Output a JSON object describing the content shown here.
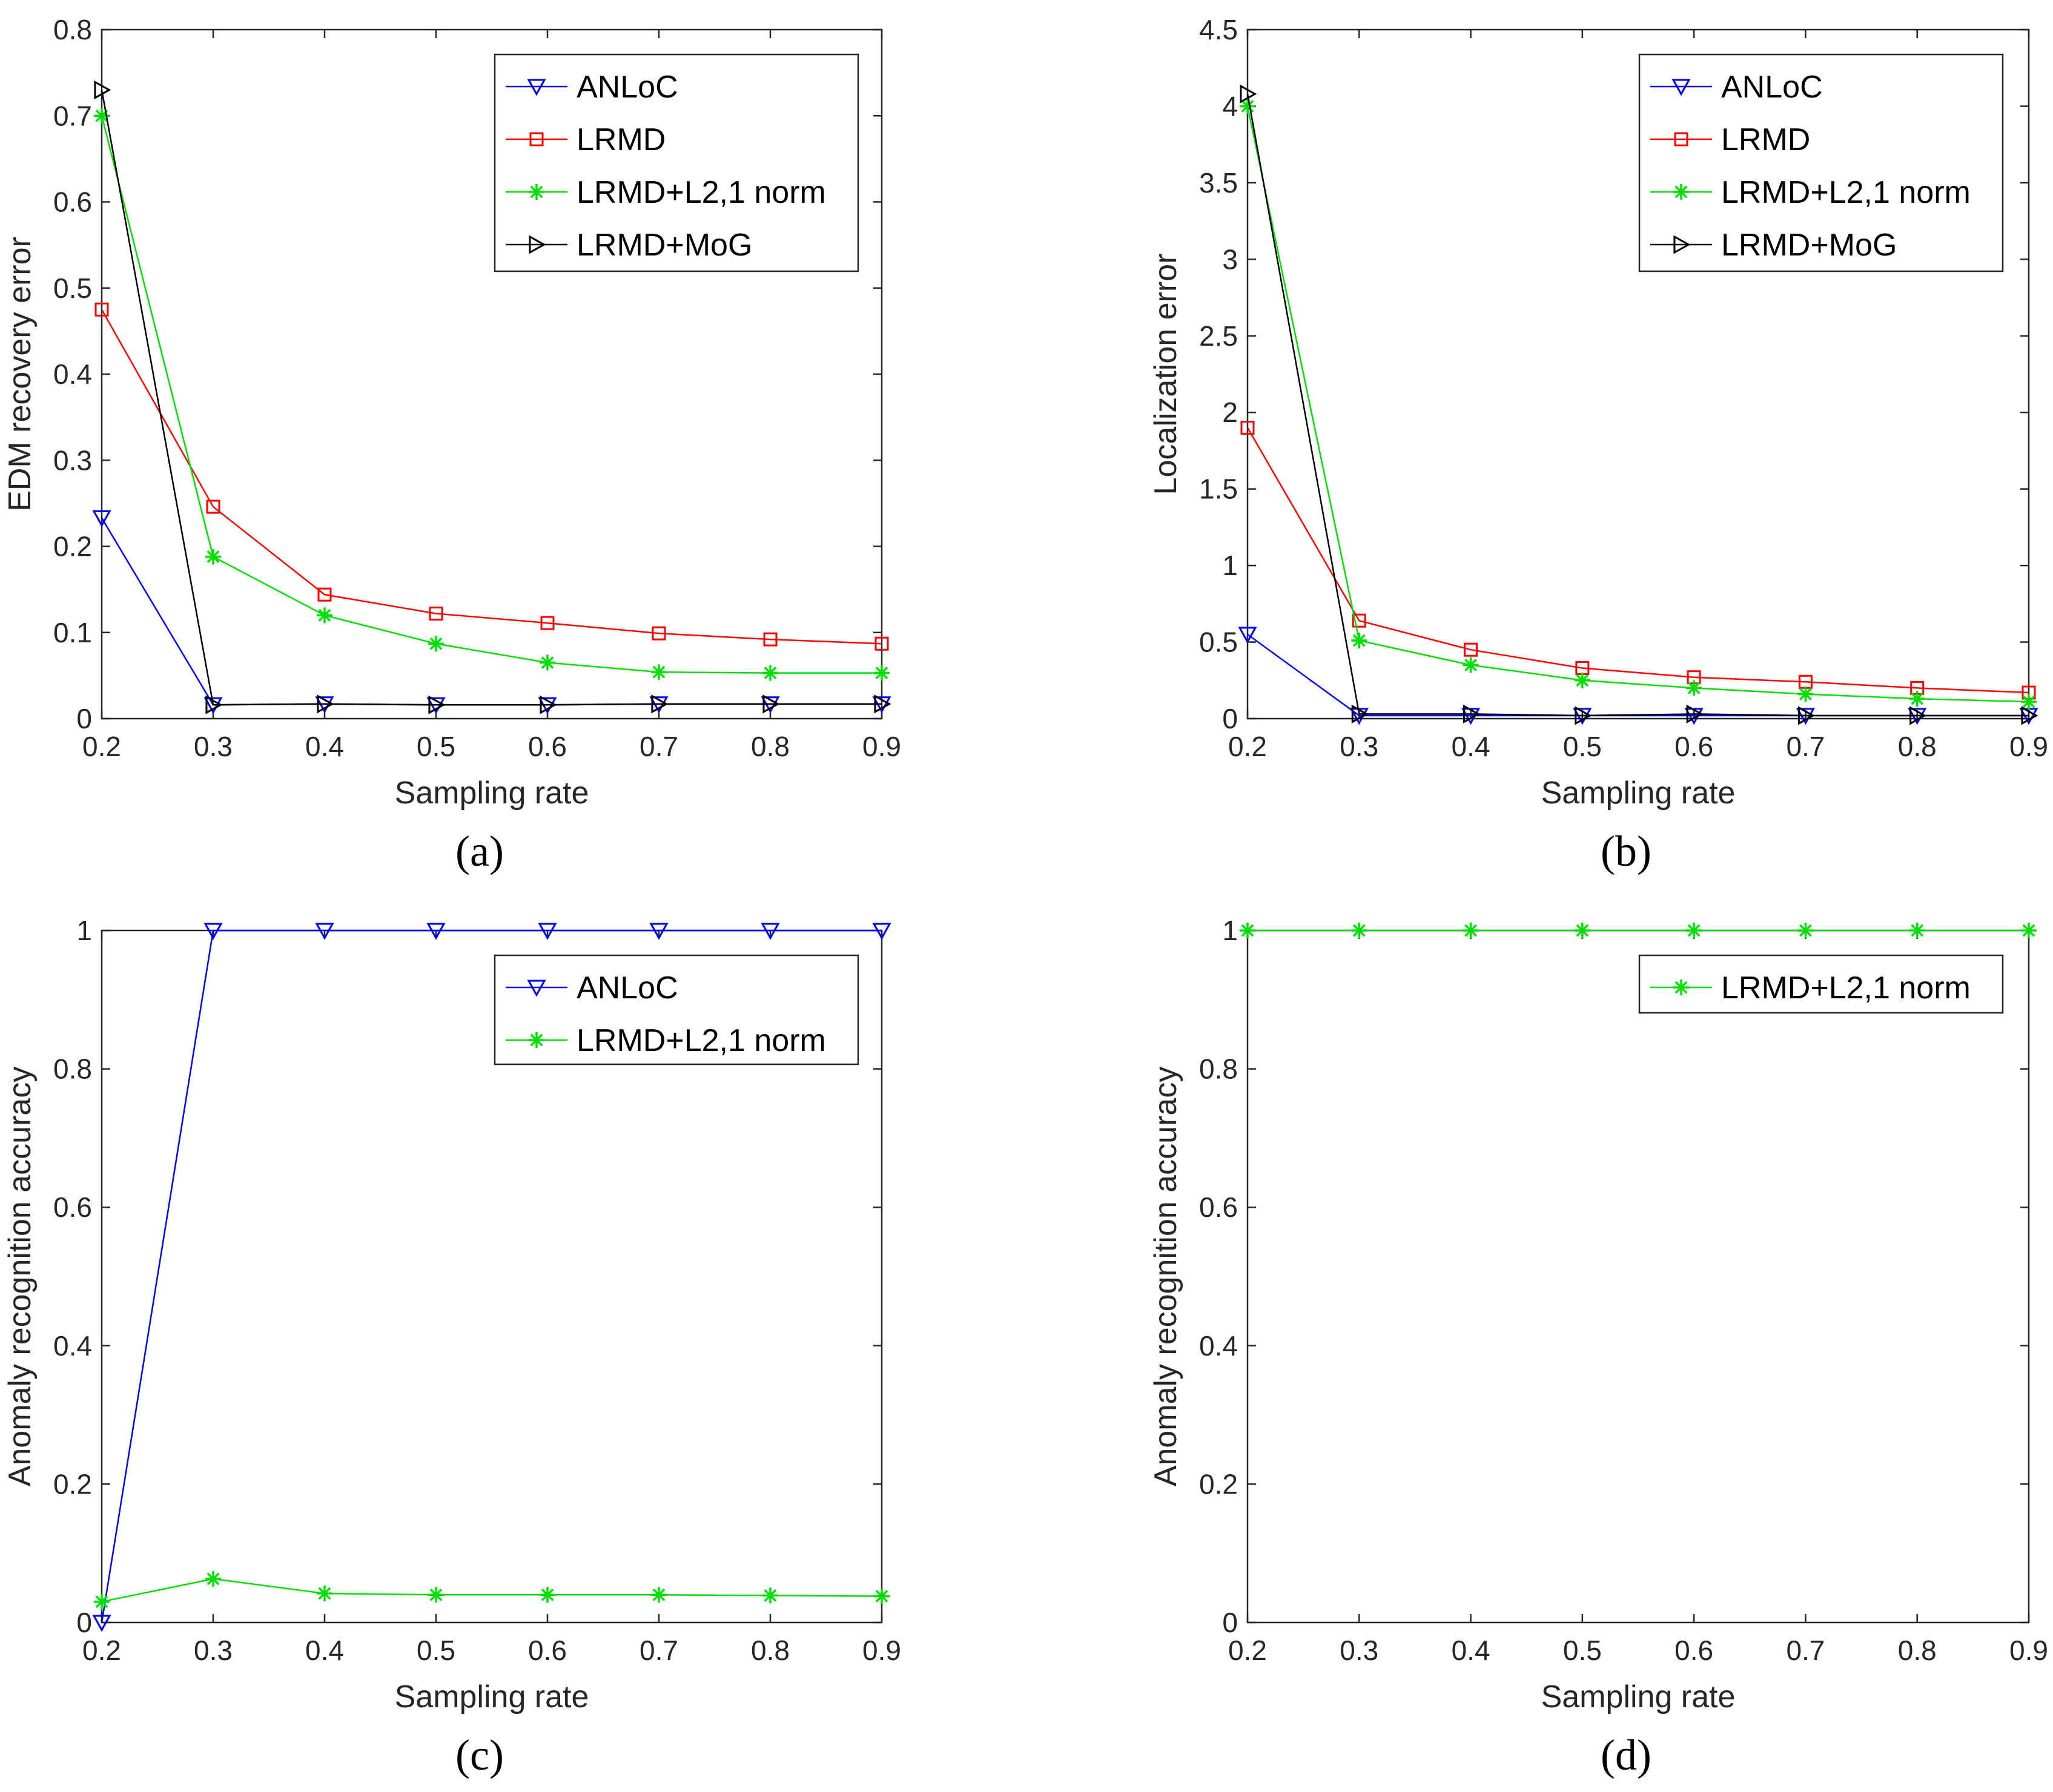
{
  "colors": {
    "ANLoC": "#0000ff",
    "LRMD": "#ff0000",
    "LRMD+L2,1 norm": "#00e000",
    "LRMD+MoG": "#000000"
  },
  "chart_data": [
    {
      "type": "line",
      "caption": "(a)",
      "xlabel": "Sampling rate",
      "ylabel": "EDM recovery error",
      "x": [
        0.2,
        0.3,
        0.4,
        0.5,
        0.6,
        0.7,
        0.8,
        0.9
      ],
      "xlim": [
        0.2,
        0.9
      ],
      "ylim": [
        0,
        0.8
      ],
      "xticks": [
        "0.2",
        "0.3",
        "0.4",
        "0.5",
        "0.6",
        "0.7",
        "0.8",
        "0.9"
      ],
      "yticks": [
        "0",
        "0.1",
        "0.2",
        "0.3",
        "0.4",
        "0.5",
        "0.6",
        "0.7",
        "0.8"
      ],
      "legend_position": "top-right",
      "series": [
        {
          "name": "ANLoC",
          "marker": "triangle-down",
          "values": [
            0.233,
            0.016,
            0.017,
            0.016,
            0.016,
            0.017,
            0.017,
            0.017
          ]
        },
        {
          "name": "LRMD",
          "marker": "square",
          "values": [
            0.475,
            0.246,
            0.144,
            0.122,
            0.111,
            0.099,
            0.092,
            0.087
          ]
        },
        {
          "name": "LRMD+L2,1 norm",
          "marker": "asterisk",
          "values": [
            0.7,
            0.188,
            0.12,
            0.087,
            0.065,
            0.054,
            0.053,
            0.053
          ]
        },
        {
          "name": "LRMD+MoG",
          "marker": "triangle-right",
          "values": [
            0.73,
            0.016,
            0.017,
            0.016,
            0.016,
            0.017,
            0.017,
            0.017
          ]
        }
      ]
    },
    {
      "type": "line",
      "caption": "(b)",
      "xlabel": "Sampling rate",
      "ylabel": "Localization error",
      "x": [
        0.2,
        0.3,
        0.4,
        0.5,
        0.6,
        0.7,
        0.8,
        0.9
      ],
      "xlim": [
        0.2,
        0.9
      ],
      "ylim": [
        0,
        4.5
      ],
      "xticks": [
        "0.2",
        "0.3",
        "0.4",
        "0.5",
        "0.6",
        "0.7",
        "0.8",
        "0.9"
      ],
      "yticks": [
        "0",
        "0.5",
        "1",
        "1.5",
        "2",
        "2.5",
        "3",
        "3.5",
        "4",
        "4.5"
      ],
      "legend_position": "top-right",
      "series": [
        {
          "name": "ANLoC",
          "marker": "triangle-down",
          "values": [
            0.55,
            0.02,
            0.02,
            0.02,
            0.02,
            0.02,
            0.02,
            0.02
          ]
        },
        {
          "name": "LRMD",
          "marker": "square",
          "values": [
            1.9,
            0.64,
            0.45,
            0.33,
            0.27,
            0.24,
            0.2,
            0.17
          ]
        },
        {
          "name": "LRMD+L2,1 norm",
          "marker": "asterisk",
          "values": [
            4.0,
            0.51,
            0.35,
            0.25,
            0.2,
            0.16,
            0.13,
            0.11
          ]
        },
        {
          "name": "LRMD+MoG",
          "marker": "triangle-right",
          "values": [
            4.08,
            0.03,
            0.03,
            0.02,
            0.03,
            0.02,
            0.02,
            0.02
          ]
        }
      ]
    },
    {
      "type": "line",
      "caption": "(c)",
      "xlabel": "Sampling rate",
      "ylabel": "Anomaly recognition accuracy",
      "x": [
        0.2,
        0.3,
        0.4,
        0.5,
        0.6,
        0.7,
        0.8,
        0.9
      ],
      "xlim": [
        0.2,
        0.9
      ],
      "ylim": [
        0,
        1
      ],
      "xticks": [
        "0.2",
        "0.3",
        "0.4",
        "0.5",
        "0.6",
        "0.7",
        "0.8",
        "0.9"
      ],
      "yticks": [
        "0",
        "0.2",
        "0.4",
        "0.6",
        "0.8",
        "1"
      ],
      "legend_position": "top-right",
      "series": [
        {
          "name": "ANLoC",
          "marker": "triangle-down",
          "values": [
            0.0,
            1.0,
            1.0,
            1.0,
            1.0,
            1.0,
            1.0,
            1.0
          ]
        },
        {
          "name": "LRMD+L2,1 norm",
          "marker": "asterisk",
          "values": [
            0.03,
            0.063,
            0.042,
            0.04,
            0.04,
            0.04,
            0.039,
            0.038
          ]
        }
      ]
    },
    {
      "type": "line",
      "caption": "(d)",
      "xlabel": "Sampling rate",
      "ylabel": "Anomaly recognition accuracy",
      "x": [
        0.2,
        0.3,
        0.4,
        0.5,
        0.6,
        0.7,
        0.8,
        0.9
      ],
      "xlim": [
        0.2,
        0.9
      ],
      "ylim": [
        0,
        1
      ],
      "xticks": [
        "0.2",
        "0.3",
        "0.4",
        "0.5",
        "0.6",
        "0.7",
        "0.8",
        "0.9"
      ],
      "yticks": [
        "0",
        "0.2",
        "0.4",
        "0.6",
        "0.8",
        "1"
      ],
      "legend_position": "top-right",
      "series": [
        {
          "name": "LRMD+L2,1 norm",
          "marker": "asterisk",
          "values": [
            1.0,
            1.0,
            1.0,
            1.0,
            1.0,
            1.0,
            1.0,
            1.0
          ]
        }
      ]
    }
  ]
}
